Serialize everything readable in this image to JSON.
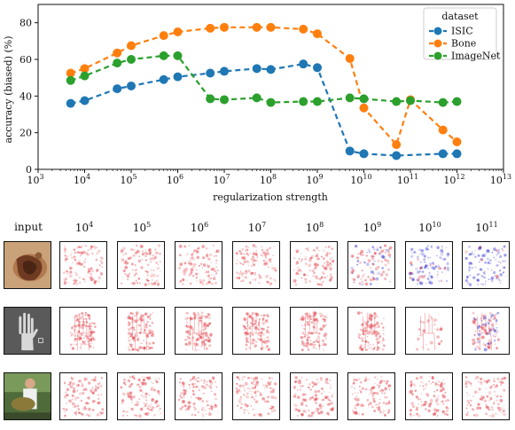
{
  "chart_data": {
    "type": "line",
    "xlabel": "regularization strength",
    "ylabel": "accuracy (biased) (%)",
    "xscale": "log",
    "xlim": [
      1000,
      10000000000000
    ],
    "ylim": [
      0,
      90
    ],
    "xticks": [
      1000,
      10000,
      100000,
      1000000,
      10000000,
      100000000,
      1000000000,
      10000000000,
      100000000000,
      1000000000000,
      10000000000000
    ],
    "xtick_labels": [
      {
        "base": "10",
        "exp": "3"
      },
      {
        "base": "10",
        "exp": "4"
      },
      {
        "base": "10",
        "exp": "5"
      },
      {
        "base": "10",
        "exp": "6"
      },
      {
        "base": "10",
        "exp": "7"
      },
      {
        "base": "10",
        "exp": "8"
      },
      {
        "base": "10",
        "exp": "9"
      },
      {
        "base": "10",
        "exp": "10"
      },
      {
        "base": "10",
        "exp": "11"
      },
      {
        "base": "10",
        "exp": "12"
      },
      {
        "base": "10",
        "exp": "13"
      }
    ],
    "yticks": [
      0,
      20,
      40,
      60,
      80
    ],
    "grid": false,
    "legend": {
      "title": "dataset",
      "placement": "top-right"
    },
    "x": [
      5000,
      10000,
      50000,
      100000,
      500000,
      1000000,
      5000000,
      10000000,
      50000000,
      100000000,
      500000000,
      1000000000,
      5000000000,
      10000000000,
      50000000000,
      100000000000,
      500000000000,
      1000000000000
    ],
    "series": [
      {
        "name": "ISIC",
        "color": "#1f77b4",
        "values": [
          36,
          37.5,
          44,
          45.5,
          49,
          50.5,
          52.5,
          53.5,
          55,
          54.5,
          57.5,
          55.5,
          10,
          8.5,
          7.5,
          null,
          8.5,
          8.5
        ]
      },
      {
        "name": "Bone",
        "color": "#ff7f0e",
        "values": [
          52.5,
          55,
          63.5,
          67.5,
          73,
          75,
          77,
          77.5,
          77.5,
          77.5,
          76.5,
          74,
          60.5,
          33.5,
          13.5,
          38,
          21.5,
          15
        ]
      },
      {
        "name": "ImageNet",
        "color": "#2ca02c",
        "values": [
          48.5,
          51,
          58,
          60,
          62,
          62,
          38.5,
          38,
          39,
          36.5,
          37,
          37,
          39,
          38.5,
          37,
          37.5,
          36.5,
          37
        ]
      }
    ]
  },
  "heatmap_grid": {
    "row_header": "input",
    "column_exponents": [
      "4",
      "5",
      "6",
      "7",
      "8",
      "9",
      "10",
      "11"
    ],
    "column_base": "10",
    "rows": [
      {
        "name": "isic-row",
        "input_kind": "skin-lesion",
        "cells": [
          "red",
          "red",
          "red",
          "red",
          "red",
          "red-blue",
          "blue",
          "blue"
        ]
      },
      {
        "name": "bone-row",
        "input_kind": "hand-xray",
        "cells": [
          "red",
          "red",
          "red",
          "red",
          "red",
          "red",
          "faint",
          "red-blue"
        ]
      },
      {
        "name": "imagenet-row",
        "input_kind": "person-with-fish",
        "cells": [
          "red",
          "red",
          "red",
          "red",
          "red",
          "red",
          "red",
          "red"
        ]
      }
    ]
  }
}
